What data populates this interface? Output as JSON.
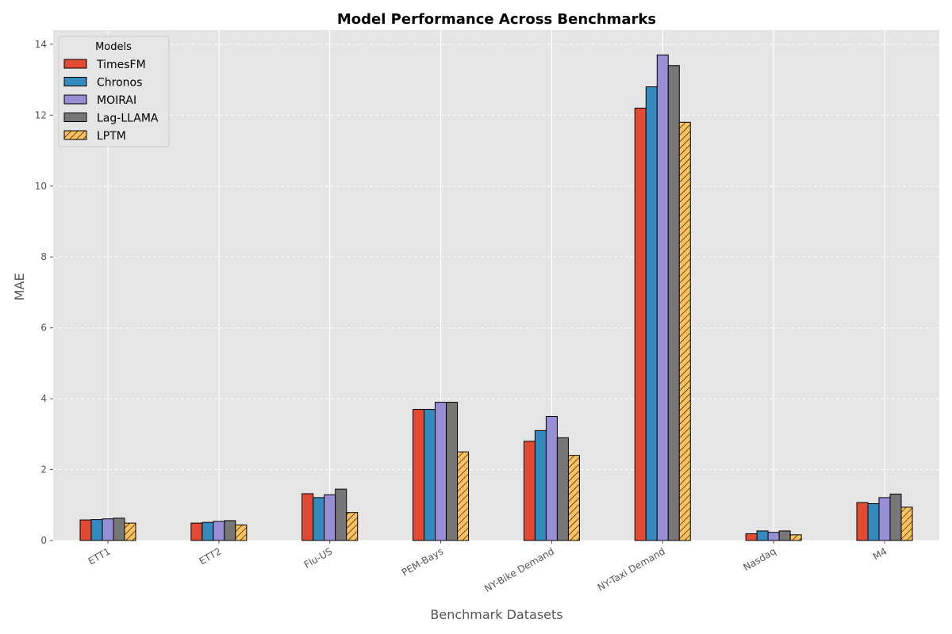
{
  "chart_data": {
    "type": "bar",
    "title": "Model Performance Across Benchmarks",
    "xlabel": "Benchmark Datasets",
    "ylabel": "MAE",
    "ylim": [
      0,
      14.4
    ],
    "yticks": [
      0,
      2,
      4,
      6,
      8,
      10,
      12,
      14
    ],
    "grid": true,
    "legend_title": "Models",
    "legend_position": "top-left",
    "categories": [
      "ETT1",
      "ETT2",
      "Flu-US",
      "PEM-Bays",
      "NY-Bike Demand",
      "NY-Taxi Demand",
      "Nasdaq",
      "M4"
    ],
    "series": [
      {
        "name": "TimesFM",
        "color": "#E24A33",
        "hatch": false,
        "values": [
          0.58,
          0.49,
          1.32,
          3.7,
          2.8,
          12.2,
          0.19,
          1.07
        ]
      },
      {
        "name": "Chronos",
        "color": "#348ABD",
        "hatch": false,
        "values": [
          0.59,
          0.51,
          1.21,
          3.7,
          3.1,
          12.8,
          0.27,
          1.04
        ]
      },
      {
        "name": "MOIRAI",
        "color": "#988ED5",
        "hatch": false,
        "values": [
          0.61,
          0.54,
          1.29,
          3.9,
          3.5,
          13.7,
          0.23,
          1.21
        ]
      },
      {
        "name": "Lag-LLAMA",
        "color": "#777777",
        "hatch": false,
        "values": [
          0.63,
          0.56,
          1.45,
          3.9,
          2.9,
          13.4,
          0.27,
          1.31
        ]
      },
      {
        "name": "LPTM",
        "color": "#FBC15E",
        "hatch": true,
        "values": [
          0.49,
          0.44,
          0.79,
          2.5,
          2.4,
          11.8,
          0.16,
          0.94
        ]
      }
    ],
    "colors": {
      "plot_background": "#E5E5E5",
      "grid": "#FFFFFF",
      "bar_edge": "#000000"
    }
  }
}
